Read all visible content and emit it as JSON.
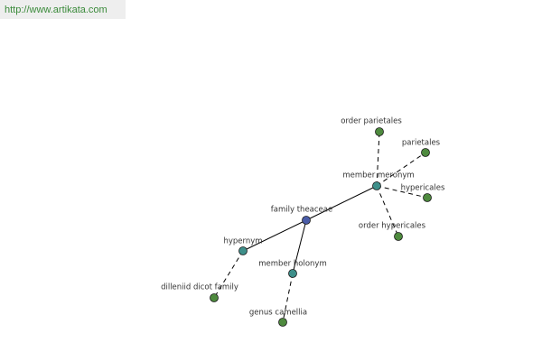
{
  "header": {
    "url": "http://www.artikata.com"
  },
  "nodes": [
    {
      "label": "family theaceae"
    },
    {
      "label": "hypernym"
    },
    {
      "label": "member holonym"
    },
    {
      "label": "member meronym"
    },
    {
      "label": "dilleniid dicot family"
    },
    {
      "label": "genus camellia"
    },
    {
      "label": "order parietales"
    },
    {
      "label": "parietales"
    },
    {
      "label": "hypericales"
    },
    {
      "label": "order hypericales"
    }
  ]
}
